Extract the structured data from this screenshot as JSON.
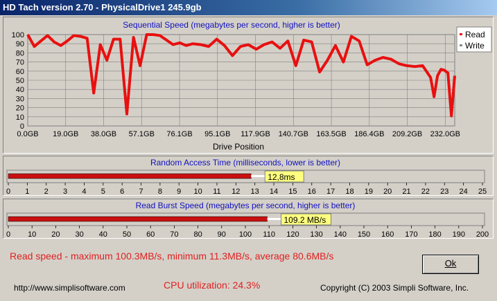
{
  "window": {
    "title": "HD Tach version 2.70 - PhysicalDrive1 245.9gb"
  },
  "chart_data": [
    {
      "type": "line",
      "title": "Sequential Speed (megabytes per second, higher is better)",
      "xlabel": "Drive Position",
      "ylabel": "",
      "x_tick_labels": [
        "0.0GB",
        "19.0GB",
        "38.0GB",
        "57.1GB",
        "76.1GB",
        "95.1GB",
        "117.9GB",
        "140.7GB",
        "163.5GB",
        "186.4GB",
        "209.2GB",
        "232.0GB"
      ],
      "y_ticks": [
        0,
        10,
        20,
        30,
        40,
        50,
        60,
        70,
        80,
        90,
        100
      ],
      "ylim": [
        0,
        100
      ],
      "xlim": [
        0,
        245.9
      ],
      "grid": true,
      "legend": {
        "position": "right",
        "entries": [
          {
            "name": "Read",
            "color": "#e81010"
          },
          {
            "name": "Write",
            "color": "#ffffff"
          }
        ]
      },
      "series": [
        {
          "name": "Read",
          "color": "#e81010",
          "x": [
            0,
            3.8,
            7.6,
            11.4,
            15.2,
            19.0,
            22.8,
            26.6,
            30.4,
            34.2,
            38.0,
            41.8,
            45.6,
            49.4,
            53.2,
            57.1,
            60.9,
            64.7,
            68.5,
            72.3,
            76.1,
            79.9,
            83.7,
            87.5,
            91.3,
            95.1,
            99.7,
            104.2,
            108.8,
            113.3,
            117.9,
            122.5,
            127.0,
            131.6,
            136.1,
            140.7,
            145.3,
            149.8,
            154.4,
            158.9,
            163.5,
            168.1,
            172.6,
            177.2,
            181.8,
            186.4,
            190.9,
            195.5,
            200.1,
            204.6,
            209.2,
            213.8,
            218.3,
            222.9,
            227.4,
            232.0,
            234.0,
            236.0,
            238.0,
            240.0,
            242.0,
            244.0,
            245.9
          ],
          "y": [
            100,
            87,
            93,
            99,
            92,
            88,
            93,
            99,
            98,
            96,
            36,
            89,
            72,
            95,
            95,
            13,
            97,
            66,
            100,
            100,
            99,
            94,
            89,
            91,
            88,
            90,
            89,
            87,
            95,
            88,
            77,
            87,
            89,
            84,
            89,
            92,
            85,
            93,
            66,
            94,
            92,
            59,
            72,
            88,
            70,
            98,
            93,
            67,
            72,
            75,
            73,
            68,
            66,
            65,
            66,
            53,
            32,
            55,
            62,
            61,
            58,
            11,
            55
          ]
        }
      ]
    },
    {
      "type": "bar",
      "title": "Random Access Time (milliseconds, lower is better)",
      "value": 12.8,
      "value_label": "12,8ms",
      "xlim": [
        0,
        25
      ],
      "tick_labels": [
        "0",
        "1",
        "2",
        "3",
        "4",
        "5",
        "6",
        "7",
        "8",
        "9",
        "10",
        "11",
        "12",
        "13",
        "14",
        "15",
        "16",
        "17",
        "18",
        "19",
        "20",
        "21",
        "22",
        "23",
        "24",
        "25"
      ]
    },
    {
      "type": "bar",
      "title": "Read Burst Speed (megabytes per second, higher is better)",
      "value": 109.2,
      "value_label": "109.2 MB/s",
      "xlim": [
        0,
        200
      ],
      "tick_labels": [
        "0",
        "10",
        "20",
        "30",
        "40",
        "50",
        "60",
        "70",
        "80",
        "90",
        "100",
        "110",
        "120",
        "130",
        "140",
        "150",
        "160",
        "170",
        "180",
        "190",
        "200"
      ]
    }
  ],
  "summary": "Read speed - maximum 100.3MB/s, minimum 11.3MB/s, average 80.6MB/s",
  "cpu": "CPU utilization: 24.3%",
  "footer": {
    "url": "http://www.simplisoftware.com",
    "copyright": "Copyright (C) 2003 Simpli Software, Inc."
  },
  "ok_button": {
    "label": "Ok"
  },
  "colors": {
    "title_text": "#1010c0",
    "bar": "#c81010",
    "value_label_bg": "#ffff80",
    "summary_text": "#e02020"
  }
}
